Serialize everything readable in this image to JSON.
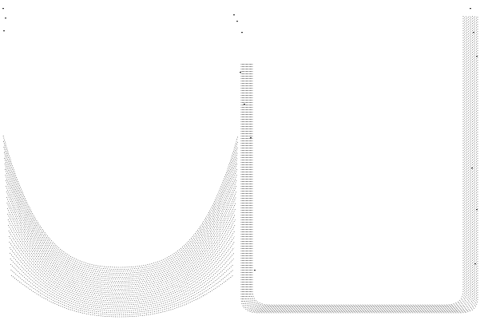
{
  "image": {
    "background_color": "#ffffff",
    "line_color": "#333333",
    "left_family_lines": 26,
    "right_family_lines": 12
  }
}
